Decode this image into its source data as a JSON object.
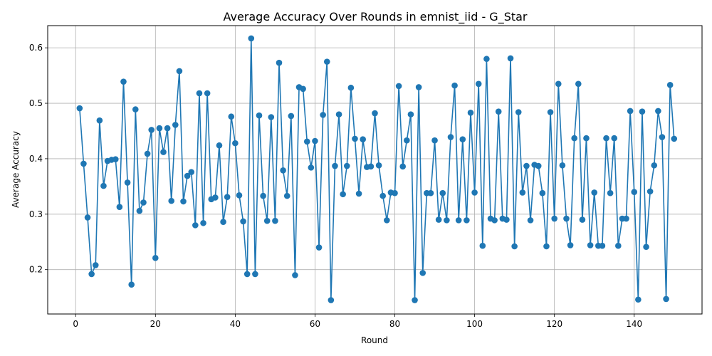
{
  "chart_data": {
    "type": "line",
    "title": "Average Accuracy Over Rounds in emnist_iid - G_Star",
    "xlabel": "Round",
    "ylabel": "Average Accuracy",
    "xlim": [
      -7,
      157
    ],
    "ylim": [
      0.12,
      0.64
    ],
    "xticks": [
      0,
      20,
      40,
      60,
      80,
      100,
      120,
      140
    ],
    "yticks": [
      0.2,
      0.3,
      0.4,
      0.5,
      0.6
    ],
    "ytick_labels": [
      "0.2",
      "0.3",
      "0.4",
      "0.5",
      "0.6"
    ],
    "grid": true,
    "series_color": "#1f77b4",
    "series": [
      {
        "x": [
          1,
          2,
          3,
          4,
          5,
          6,
          7,
          8,
          9,
          10,
          11,
          12,
          13,
          14,
          15,
          16,
          17,
          18,
          19,
          20,
          21,
          22,
          23,
          24,
          25,
          26,
          27,
          28,
          29,
          30,
          31,
          32,
          33,
          34,
          35,
          36,
          37,
          38,
          39,
          40,
          41,
          42,
          43,
          44,
          45,
          46,
          47,
          48,
          49,
          50,
          51,
          52,
          53,
          54,
          55,
          56,
          57,
          58,
          59,
          60,
          61,
          62,
          63,
          64,
          65,
          66,
          67,
          68,
          69,
          70,
          71,
          72,
          73,
          74,
          75,
          76,
          77,
          78,
          79,
          80,
          81,
          82,
          83,
          84,
          85,
          86,
          87,
          88,
          89,
          90,
          91,
          92,
          93,
          94,
          95,
          96,
          97,
          98,
          99,
          100,
          101,
          102,
          103,
          104,
          105,
          106,
          107,
          108,
          109,
          110,
          111,
          112,
          113,
          114,
          115,
          116,
          117,
          118,
          119,
          120,
          121,
          122,
          123,
          124,
          125,
          126,
          127,
          128,
          129,
          130,
          131,
          132,
          133,
          134,
          135,
          136,
          137,
          138,
          139,
          140,
          141,
          142,
          143,
          144,
          145,
          146,
          147,
          148,
          149,
          150
        ],
        "values": [
          0.491,
          0.391,
          0.294,
          0.192,
          0.208,
          0.469,
          0.351,
          0.396,
          0.398,
          0.399,
          0.313,
          0.539,
          0.357,
          0.173,
          0.489,
          0.306,
          0.321,
          0.409,
          0.452,
          0.221,
          0.455,
          0.412,
          0.455,
          0.324,
          0.461,
          0.558,
          0.323,
          0.369,
          0.376,
          0.28,
          0.518,
          0.284,
          0.518,
          0.327,
          0.33,
          0.424,
          0.286,
          0.331,
          0.476,
          0.428,
          0.334,
          0.287,
          0.192,
          0.617,
          0.192,
          0.478,
          0.333,
          0.288,
          0.475,
          0.288,
          0.573,
          0.379,
          0.333,
          0.477,
          0.19,
          0.529,
          0.526,
          0.431,
          0.384,
          0.432,
          0.24,
          0.479,
          0.575,
          0.145,
          0.387,
          0.48,
          0.336,
          0.387,
          0.528,
          0.436,
          0.337,
          0.435,
          0.385,
          0.386,
          0.482,
          0.388,
          0.333,
          0.289,
          0.339,
          0.338,
          0.531,
          0.386,
          0.433,
          0.48,
          0.145,
          0.529,
          0.194,
          0.338,
          0.338,
          0.433,
          0.29,
          0.338,
          0.289,
          0.439,
          0.532,
          0.289,
          0.435,
          0.289,
          0.483,
          0.339,
          0.535,
          0.243,
          0.58,
          0.292,
          0.289,
          0.485,
          0.292,
          0.29,
          0.581,
          0.242,
          0.484,
          0.339,
          0.387,
          0.289,
          0.389,
          0.387,
          0.338,
          0.242,
          0.484,
          0.292,
          0.535,
          0.388,
          0.292,
          0.244,
          0.437,
          0.535,
          0.29,
          0.437,
          0.244,
          0.339,
          0.243,
          0.243,
          0.437,
          0.338,
          0.437,
          0.243,
          0.292,
          0.292,
          0.486,
          0.34,
          0.146,
          0.485,
          0.241,
          0.341,
          0.388,
          0.486,
          0.439,
          0.147,
          0.533,
          0.436
        ]
      }
    ]
  }
}
